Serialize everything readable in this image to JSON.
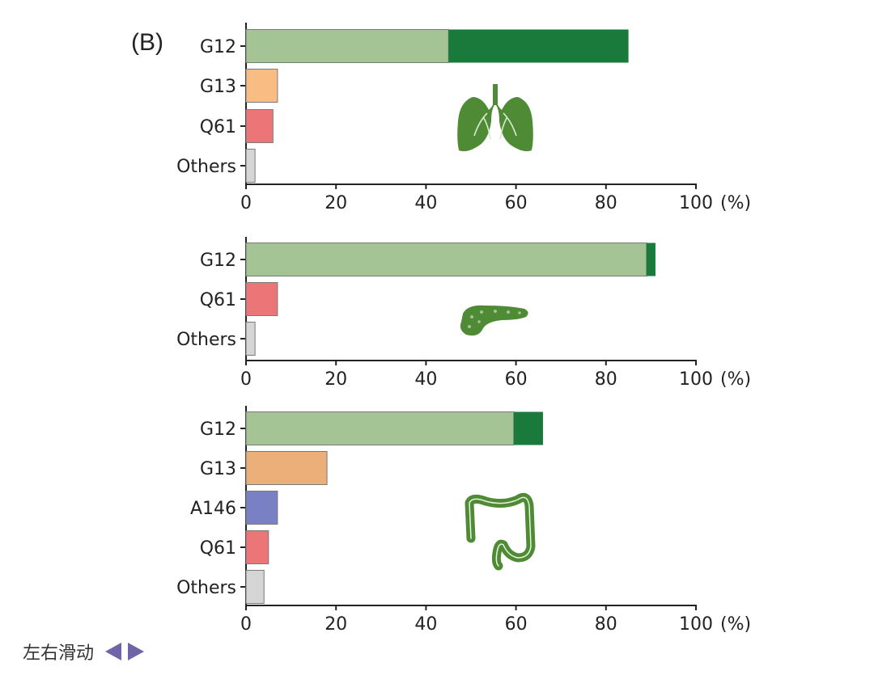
{
  "panel_label": "(B)",
  "nav": {
    "label": "左右滑动"
  },
  "colors": {
    "G12_light": "#a5c496",
    "G12_dark": "#1a7a3c",
    "G13_lung": "#f9bd83",
    "G13_colon": "#ebb07a",
    "Q61": "#ec7677",
    "A146": "#7a80c4",
    "Others": "#d5d5d5",
    "organ": "#4e8b34"
  },
  "chart_data": [
    {
      "type": "bar",
      "orientation": "horizontal",
      "stacked": true,
      "organ_icon": "lung-icon",
      "categories": [
        "G12",
        "G13",
        "Q61",
        "Others"
      ],
      "series": [
        {
          "values": [
            45,
            7,
            6,
            2
          ]
        },
        {
          "values": [
            40,
            0,
            0,
            0
          ]
        }
      ],
      "xlim": [
        0,
        100
      ],
      "x_ticks": [
        "0",
        "20",
        "40",
        "60",
        "80",
        "100"
      ],
      "x_unit": "(%)"
    },
    {
      "type": "bar",
      "orientation": "horizontal",
      "stacked": true,
      "organ_icon": "pancreas-icon",
      "categories": [
        "G12",
        "Q61",
        "Others"
      ],
      "series": [
        {
          "values": [
            89,
            7,
            2
          ]
        },
        {
          "values": [
            2,
            0,
            0
          ]
        }
      ],
      "xlim": [
        0,
        100
      ],
      "x_ticks": [
        "0",
        "20",
        "40",
        "60",
        "80",
        "100"
      ],
      "x_unit": "(%)"
    },
    {
      "type": "bar",
      "orientation": "horizontal",
      "stacked": true,
      "organ_icon": "colon-icon",
      "categories": [
        "G12",
        "G13",
        "A146",
        "Q61",
        "Others"
      ],
      "series": [
        {
          "values": [
            59.5,
            18,
            7,
            5,
            4
          ]
        },
        {
          "values": [
            6.5,
            0,
            0,
            0,
            0
          ]
        }
      ],
      "xlim": [
        0,
        100
      ],
      "x_ticks": [
        "0",
        "20",
        "40",
        "60",
        "80",
        "100"
      ],
      "x_unit": "(%)"
    }
  ]
}
